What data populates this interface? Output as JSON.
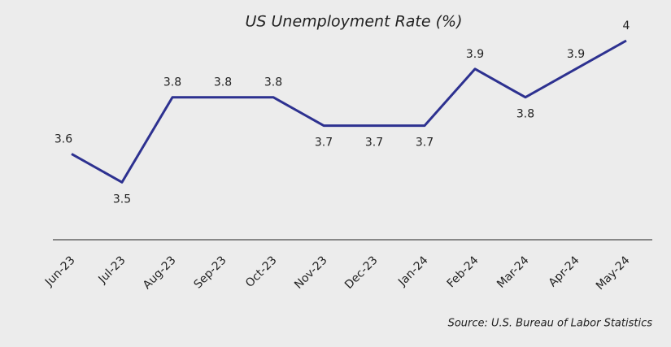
{
  "chart_data": {
    "type": "line",
    "title": "US Unemployment Rate (%)",
    "categories": [
      "Jun-23",
      "Jul-23",
      "Aug-23",
      "Sep-23",
      "Oct-23",
      "Nov-23",
      "Dec-23",
      "Jan-24",
      "Feb-24",
      "Mar-24",
      "Apr-24",
      "May-24"
    ],
    "values": [
      3.6,
      3.5,
      3.8,
      3.8,
      3.8,
      3.7,
      3.7,
      3.7,
      3.9,
      3.8,
      3.9,
      4
    ],
    "color": "#2d3190",
    "ylim": [
      3.3,
      4
    ],
    "source": "Source: U.S. Bureau of Labor Statistics"
  }
}
